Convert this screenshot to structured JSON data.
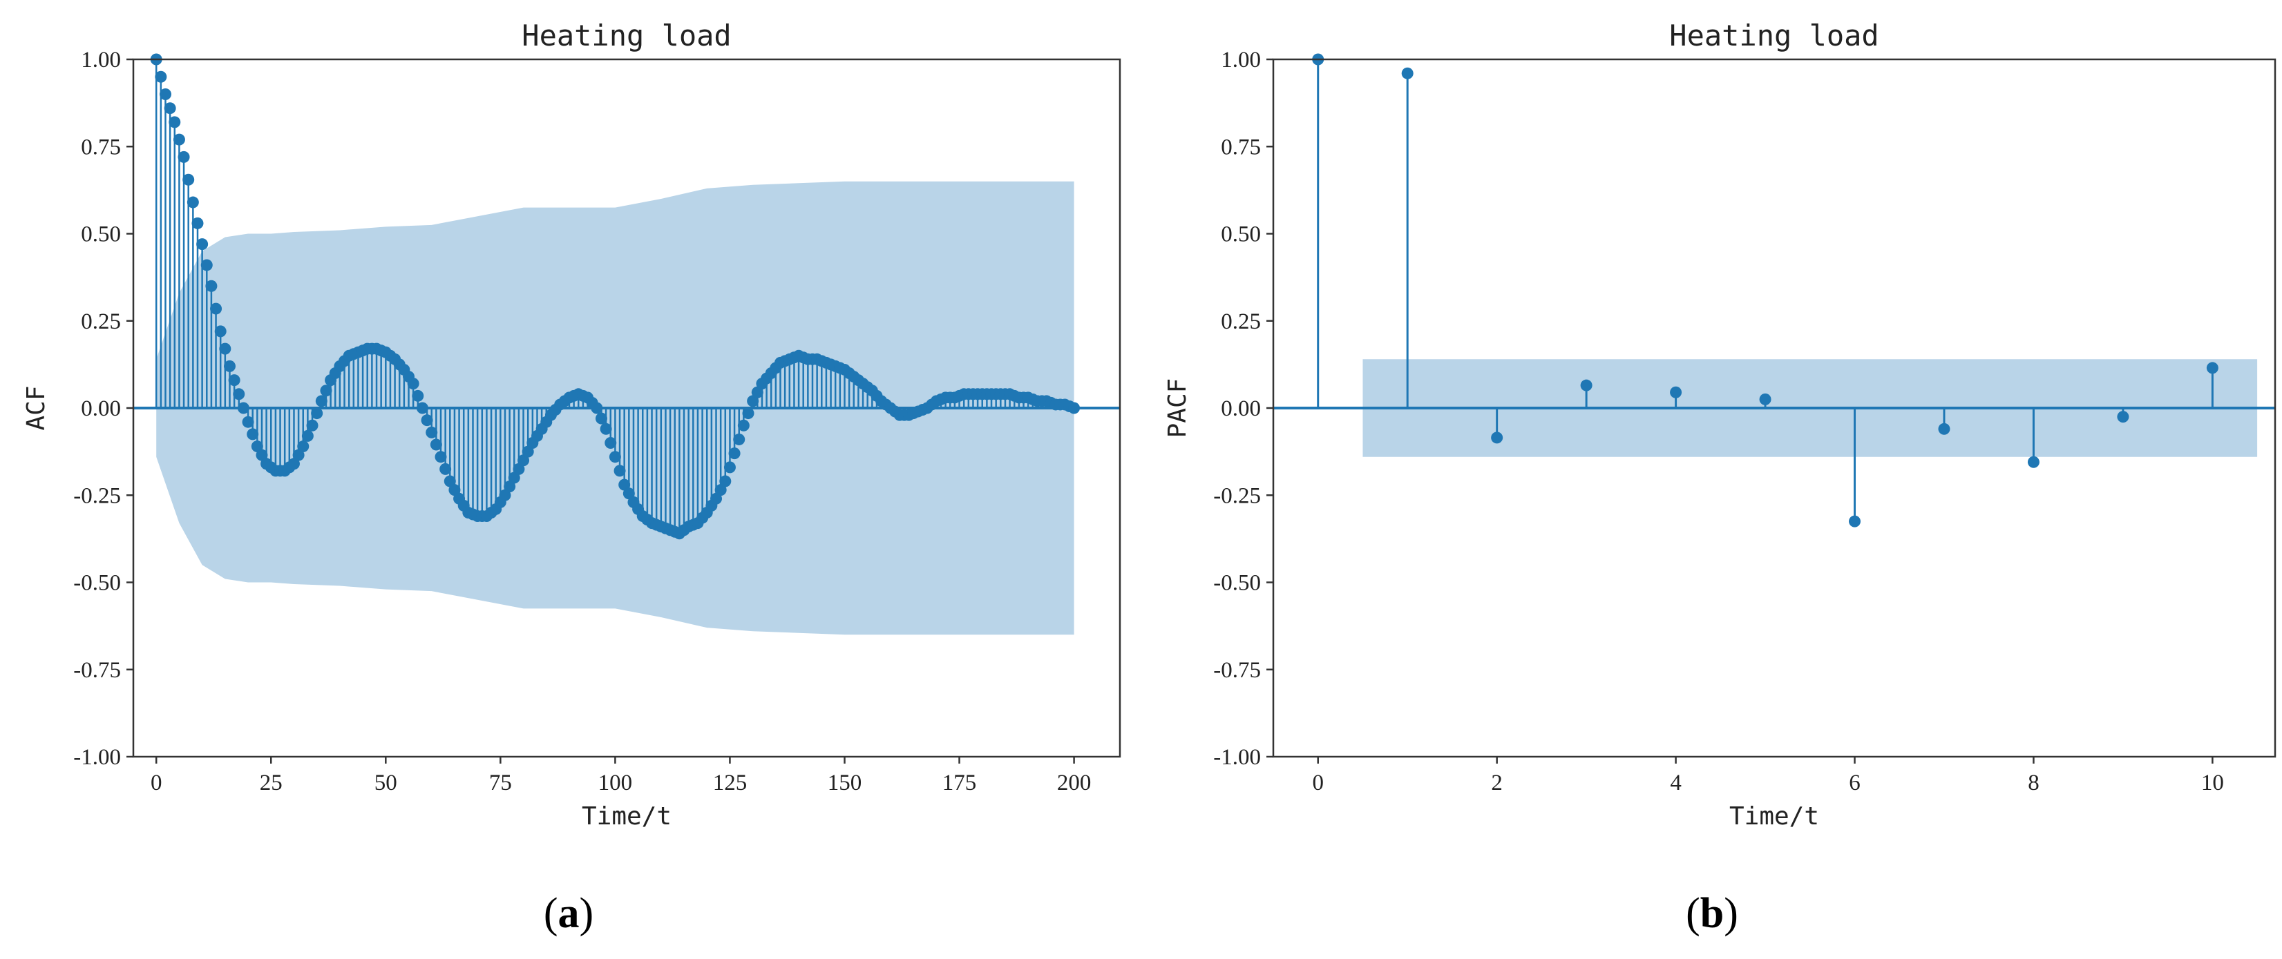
{
  "chart_data": [
    {
      "type": "stem",
      "panel_label": {
        "open": "(",
        "letter": "a",
        "close": ")"
      },
      "title": "Heating load",
      "xlabel": "Time/t",
      "ylabel": "ACF",
      "xlim": [
        -5,
        210
      ],
      "ylim": [
        -1.0,
        1.0
      ],
      "xticks": [
        0,
        25,
        50,
        75,
        100,
        125,
        150,
        175,
        200
      ],
      "yticks": [
        -1.0,
        -0.75,
        -0.5,
        -0.25,
        0.0,
        0.25,
        0.5,
        0.75,
        1.0
      ],
      "ytick_labels": [
        "-1.00",
        "-0.75",
        "-0.50",
        "-0.25",
        "0.00",
        "0.25",
        "0.50",
        "0.75",
        "1.00"
      ],
      "grid": false,
      "color": "#1f77b4",
      "band_color": "#b9d4e8",
      "lags": [
        0,
        200
      ],
      "x": [
        0,
        2,
        4,
        6,
        8,
        10,
        12,
        14,
        16,
        18,
        20,
        22,
        24,
        26,
        28,
        30,
        32,
        34,
        36,
        38,
        40,
        42,
        44,
        46,
        48,
        50,
        52,
        54,
        56,
        58,
        60,
        62,
        64,
        66,
        68,
        70,
        72,
        74,
        76,
        78,
        80,
        82,
        84,
        86,
        88,
        90,
        92,
        94,
        96,
        98,
        100,
        102,
        104,
        106,
        108,
        110,
        112,
        114,
        116,
        118,
        120,
        122,
        124,
        126,
        128,
        130,
        132,
        134,
        136,
        138,
        140,
        142,
        144,
        146,
        148,
        150,
        152,
        154,
        156,
        158,
        160,
        162,
        164,
        166,
        168,
        170,
        172,
        174,
        176,
        178,
        180,
        182,
        184,
        186,
        188,
        190,
        192,
        194,
        196,
        198,
        200
      ],
      "values": [
        1.0,
        0.9,
        0.82,
        0.72,
        0.59,
        0.47,
        0.35,
        0.22,
        0.12,
        0.04,
        -0.04,
        -0.11,
        -0.16,
        -0.18,
        -0.18,
        -0.16,
        -0.11,
        -0.05,
        0.02,
        0.08,
        0.12,
        0.15,
        0.16,
        0.17,
        0.17,
        0.16,
        0.14,
        0.11,
        0.07,
        0.0,
        -0.07,
        -0.14,
        -0.21,
        -0.26,
        -0.3,
        -0.31,
        -0.31,
        -0.29,
        -0.25,
        -0.2,
        -0.15,
        -0.1,
        -0.06,
        -0.02,
        0.01,
        0.03,
        0.04,
        0.03,
        0.0,
        -0.06,
        -0.14,
        -0.22,
        -0.27,
        -0.31,
        -0.33,
        -0.34,
        -0.35,
        -0.36,
        -0.34,
        -0.33,
        -0.3,
        -0.26,
        -0.21,
        -0.13,
        -0.05,
        0.02,
        0.07,
        0.1,
        0.13,
        0.14,
        0.15,
        0.14,
        0.14,
        0.13,
        0.12,
        0.11,
        0.09,
        0.07,
        0.05,
        0.02,
        0.0,
        -0.02,
        -0.02,
        -0.01,
        0.0,
        0.02,
        0.03,
        0.03,
        0.04,
        0.04,
        0.04,
        0.04,
        0.04,
        0.04,
        0.03,
        0.03,
        0.02,
        0.02,
        0.01,
        0.01,
        0.0
      ],
      "confidence_band": {
        "x": [
          0,
          5,
          10,
          15,
          20,
          25,
          30,
          40,
          50,
          60,
          70,
          80,
          90,
          100,
          110,
          120,
          130,
          140,
          150,
          175,
          200
        ],
        "upper": [
          0.14,
          0.33,
          0.45,
          0.49,
          0.5,
          0.5,
          0.505,
          0.51,
          0.52,
          0.525,
          0.55,
          0.575,
          0.575,
          0.575,
          0.6,
          0.63,
          0.64,
          0.645,
          0.65,
          0.65,
          0.65
        ],
        "lower": [
          -0.14,
          -0.33,
          -0.45,
          -0.49,
          -0.5,
          -0.5,
          -0.505,
          -0.51,
          -0.52,
          -0.525,
          -0.55,
          -0.575,
          -0.575,
          -0.575,
          -0.6,
          -0.63,
          -0.64,
          -0.645,
          -0.65,
          -0.65,
          -0.65
        ]
      }
    },
    {
      "type": "stem",
      "panel_label": {
        "open": "(",
        "letter": "b",
        "close": ")"
      },
      "title": "Heating load",
      "xlabel": "Time/t",
      "ylabel": "PACF",
      "xlim": [
        -0.5,
        10.7
      ],
      "ylim": [
        -1.0,
        1.0
      ],
      "xticks": [
        0,
        2,
        4,
        6,
        8,
        10
      ],
      "yticks": [
        -1.0,
        -0.75,
        -0.5,
        -0.25,
        0.0,
        0.25,
        0.5,
        0.75,
        1.0
      ],
      "ytick_labels": [
        "-1.00",
        "-0.75",
        "-0.50",
        "-0.25",
        "0.00",
        "0.25",
        "0.50",
        "0.75",
        "1.00"
      ],
      "grid": false,
      "color": "#1f77b4",
      "band_color": "#b9d4e8",
      "x": [
        0,
        1,
        2,
        3,
        4,
        5,
        6,
        7,
        8,
        9,
        10
      ],
      "values": [
        1.0,
        0.96,
        -0.085,
        0.065,
        0.045,
        0.025,
        -0.325,
        -0.06,
        -0.155,
        -0.025,
        0.115
      ],
      "confidence_band": {
        "x": [
          0.5,
          10.5
        ],
        "upper": [
          0.14,
          0.14
        ],
        "lower": [
          -0.14,
          -0.14
        ]
      }
    }
  ]
}
